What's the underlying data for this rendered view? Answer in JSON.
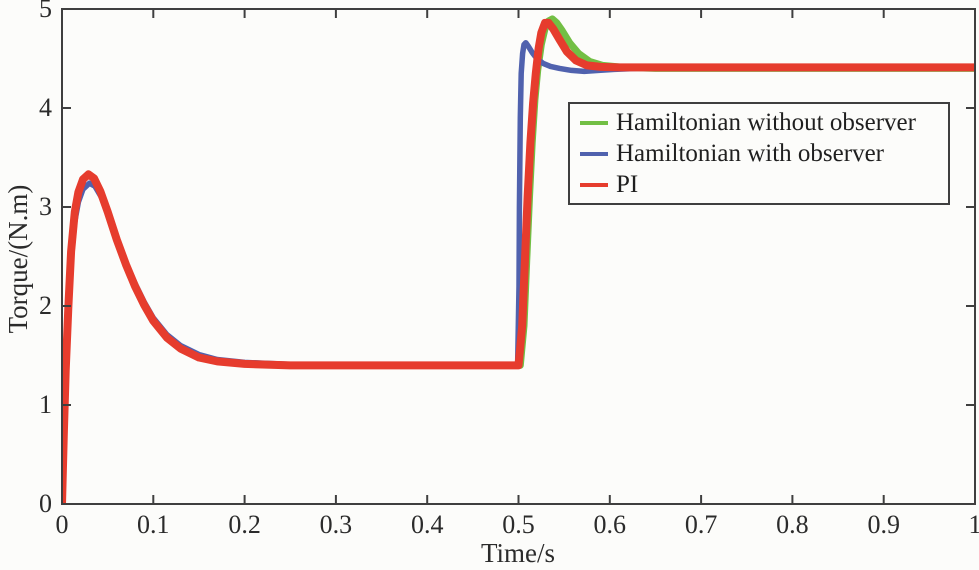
{
  "figure": {
    "background": "#fcfcfa",
    "frame_color": "#3f3f3f",
    "text_color": "#2b2b2b"
  },
  "chart_data": {
    "type": "line",
    "title": "",
    "xlabel": "Time/s",
    "ylabel": "Torque/(N.m)",
    "xlim": [
      0,
      1
    ],
    "ylim": [
      0,
      5
    ],
    "grid": false,
    "tick_direction": "in",
    "box": true,
    "x_ticks": {
      "values": [
        0,
        0.1,
        0.2,
        0.3,
        0.4,
        0.5,
        0.6,
        0.7,
        0.8,
        0.9,
        1
      ],
      "labels": [
        "0",
        "0.1",
        "0.2",
        "0.3",
        "0.4",
        "0.5",
        "0.6",
        "0.7",
        "0.8",
        "0.9",
        "1"
      ]
    },
    "y_ticks": {
      "values": [
        0,
        1,
        2,
        3,
        4,
        5
      ],
      "labels": [
        "0",
        "1",
        "2",
        "3",
        "4",
        "5"
      ]
    },
    "legend": {
      "position": "upper-right-inside",
      "border_color": "#3f3f3f"
    },
    "series": [
      {
        "name": "Hamiltonian without observer",
        "color": "#72bf44",
        "width": 7,
        "points": [
          [
            0,
            0
          ],
          [
            0.002,
            0.7
          ],
          [
            0.004,
            1.35
          ],
          [
            0.007,
            2.0
          ],
          [
            0.01,
            2.55
          ],
          [
            0.014,
            2.95
          ],
          [
            0.018,
            3.15
          ],
          [
            0.023,
            3.28
          ],
          [
            0.029,
            3.33
          ],
          [
            0.035,
            3.29
          ],
          [
            0.042,
            3.16
          ],
          [
            0.05,
            2.95
          ],
          [
            0.06,
            2.67
          ],
          [
            0.07,
            2.42
          ],
          [
            0.08,
            2.2
          ],
          [
            0.09,
            2.01
          ],
          [
            0.1,
            1.85
          ],
          [
            0.115,
            1.68
          ],
          [
            0.13,
            1.57
          ],
          [
            0.15,
            1.48
          ],
          [
            0.17,
            1.44
          ],
          [
            0.2,
            1.42
          ],
          [
            0.25,
            1.4
          ],
          [
            0.3,
            1.4
          ],
          [
            0.35,
            1.4
          ],
          [
            0.4,
            1.4
          ],
          [
            0.45,
            1.4
          ],
          [
            0.502,
            1.4
          ],
          [
            0.506,
            1.8
          ],
          [
            0.509,
            2.45
          ],
          [
            0.512,
            3.1
          ],
          [
            0.515,
            3.65
          ],
          [
            0.518,
            4.08
          ],
          [
            0.521,
            4.38
          ],
          [
            0.525,
            4.64
          ],
          [
            0.529,
            4.8
          ],
          [
            0.533,
            4.88
          ],
          [
            0.537,
            4.9
          ],
          [
            0.542,
            4.86
          ],
          [
            0.548,
            4.78
          ],
          [
            0.556,
            4.66
          ],
          [
            0.566,
            4.55
          ],
          [
            0.578,
            4.47
          ],
          [
            0.592,
            4.43
          ],
          [
            0.615,
            4.41
          ],
          [
            0.65,
            4.4
          ],
          [
            0.7,
            4.4
          ],
          [
            0.8,
            4.4
          ],
          [
            0.9,
            4.4
          ],
          [
            1,
            4.4
          ]
        ]
      },
      {
        "name": "Hamiltonian with observer",
        "color": "#5062ae",
        "width": 5.5,
        "points": [
          [
            0,
            0
          ],
          [
            0.002,
            0.65
          ],
          [
            0.004,
            1.28
          ],
          [
            0.007,
            1.92
          ],
          [
            0.01,
            2.45
          ],
          [
            0.014,
            2.85
          ],
          [
            0.018,
            3.05
          ],
          [
            0.023,
            3.18
          ],
          [
            0.03,
            3.24
          ],
          [
            0.036,
            3.21
          ],
          [
            0.043,
            3.1
          ],
          [
            0.05,
            2.93
          ],
          [
            0.06,
            2.68
          ],
          [
            0.07,
            2.44
          ],
          [
            0.08,
            2.23
          ],
          [
            0.09,
            2.04
          ],
          [
            0.1,
            1.88
          ],
          [
            0.115,
            1.71
          ],
          [
            0.13,
            1.6
          ],
          [
            0.15,
            1.51
          ],
          [
            0.17,
            1.46
          ],
          [
            0.2,
            1.43
          ],
          [
            0.25,
            1.41
          ],
          [
            0.3,
            1.4
          ],
          [
            0.4,
            1.4
          ],
          [
            0.499,
            1.4
          ],
          [
            0.5005,
            2.2
          ],
          [
            0.501,
            3.0
          ],
          [
            0.502,
            3.9
          ],
          [
            0.503,
            4.35
          ],
          [
            0.5045,
            4.55
          ],
          [
            0.506,
            4.64
          ],
          [
            0.508,
            4.66
          ],
          [
            0.511,
            4.62
          ],
          [
            0.515,
            4.56
          ],
          [
            0.52,
            4.5
          ],
          [
            0.527,
            4.45
          ],
          [
            0.535,
            4.42
          ],
          [
            0.545,
            4.4
          ],
          [
            0.558,
            4.38
          ],
          [
            0.572,
            4.37
          ],
          [
            0.588,
            4.38
          ],
          [
            0.605,
            4.39
          ],
          [
            0.63,
            4.4
          ],
          [
            0.7,
            4.4
          ],
          [
            0.8,
            4.4
          ],
          [
            0.9,
            4.4
          ],
          [
            1,
            4.4
          ]
        ]
      },
      {
        "name": "PI",
        "color": "#e63c2d",
        "width": 8,
        "points": [
          [
            0,
            0
          ],
          [
            0.002,
            0.7
          ],
          [
            0.004,
            1.35
          ],
          [
            0.007,
            2.0
          ],
          [
            0.01,
            2.55
          ],
          [
            0.014,
            2.95
          ],
          [
            0.018,
            3.15
          ],
          [
            0.023,
            3.28
          ],
          [
            0.029,
            3.33
          ],
          [
            0.035,
            3.29
          ],
          [
            0.042,
            3.16
          ],
          [
            0.05,
            2.95
          ],
          [
            0.06,
            2.67
          ],
          [
            0.07,
            2.42
          ],
          [
            0.08,
            2.2
          ],
          [
            0.09,
            2.01
          ],
          [
            0.1,
            1.85
          ],
          [
            0.115,
            1.68
          ],
          [
            0.13,
            1.57
          ],
          [
            0.15,
            1.48
          ],
          [
            0.17,
            1.44
          ],
          [
            0.2,
            1.415
          ],
          [
            0.25,
            1.4
          ],
          [
            0.3,
            1.4
          ],
          [
            0.35,
            1.4
          ],
          [
            0.4,
            1.4
          ],
          [
            0.45,
            1.4
          ],
          [
            0.5,
            1.4
          ],
          [
            0.504,
            1.8
          ],
          [
            0.507,
            2.45
          ],
          [
            0.51,
            3.1
          ],
          [
            0.513,
            3.65
          ],
          [
            0.516,
            4.05
          ],
          [
            0.519,
            4.35
          ],
          [
            0.522,
            4.6
          ],
          [
            0.525,
            4.76
          ],
          [
            0.529,
            4.86
          ],
          [
            0.533,
            4.86
          ],
          [
            0.538,
            4.8
          ],
          [
            0.545,
            4.69
          ],
          [
            0.553,
            4.57
          ],
          [
            0.563,
            4.48
          ],
          [
            0.575,
            4.43
          ],
          [
            0.59,
            4.415
          ],
          [
            0.61,
            4.41
          ],
          [
            0.65,
            4.41
          ],
          [
            0.7,
            4.41
          ],
          [
            0.8,
            4.41
          ],
          [
            0.9,
            4.41
          ],
          [
            1,
            4.41
          ]
        ]
      }
    ]
  }
}
